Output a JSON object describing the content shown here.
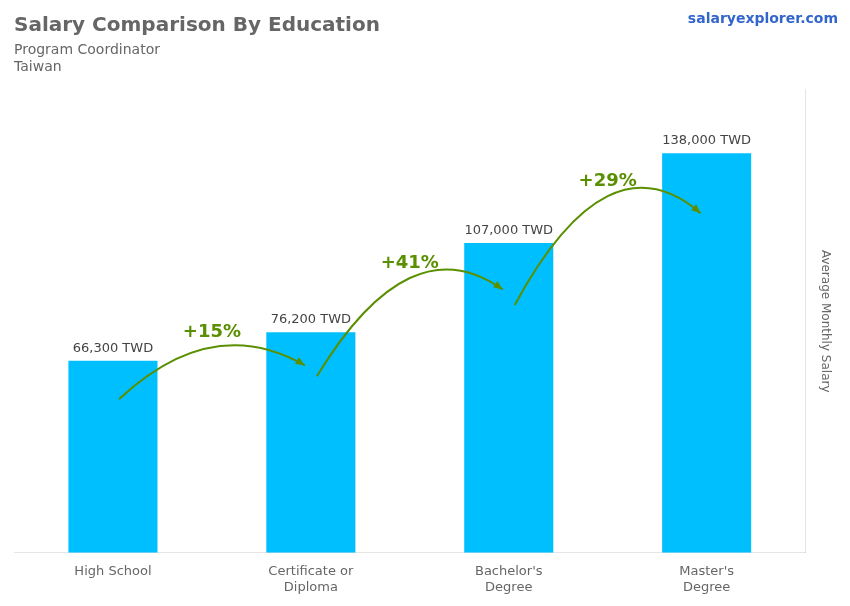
{
  "chart_data": {
    "type": "bar",
    "title": "Salary Comparison By Education",
    "subtitle": [
      "Program Coordinator",
      "Taiwan"
    ],
    "watermark": "salaryexplorer.com",
    "ylabel": "Average Monthly Salary",
    "categories": [
      "High School",
      "Certificate or\nDiploma",
      "Bachelor's\nDegree",
      "Master's\nDegree"
    ],
    "values": [
      66300,
      76200,
      107000,
      138000
    ],
    "value_labels": [
      "66,300 TWD",
      "76,200 TWD",
      "107,000 TWD",
      "138,000 TWD"
    ],
    "data_labels": true,
    "annotations": [
      "+15%",
      "+41%",
      "+29%"
    ],
    "color": "#00BFFF",
    "ylim": [
      0,
      160000
    ],
    "grid": false,
    "tick_labels": "x"
  }
}
